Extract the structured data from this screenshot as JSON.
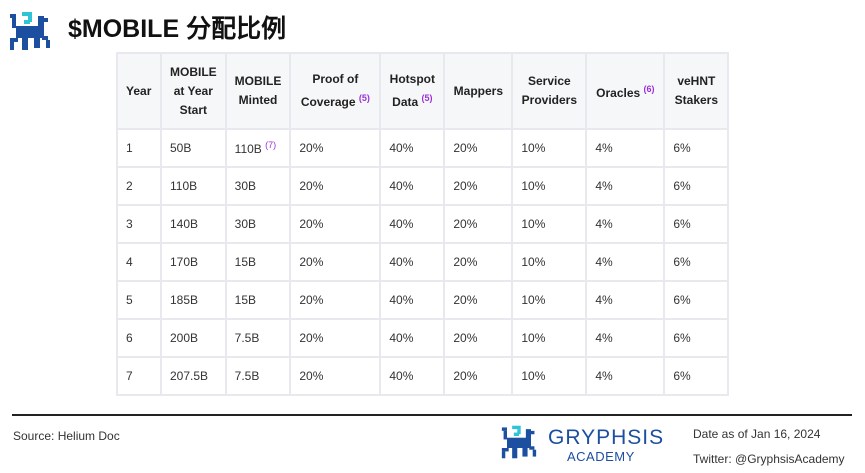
{
  "title": "$MOBILE 分配比例",
  "table": {
    "headers": [
      {
        "label": "Year",
        "note": ""
      },
      {
        "label": "MOBILE at Year Start",
        "note": ""
      },
      {
        "label": "MOBILE Minted",
        "note": ""
      },
      {
        "label": "Proof of Coverage",
        "note": "(5)"
      },
      {
        "label": "Hotspot Data",
        "note": "(5)"
      },
      {
        "label": "Mappers",
        "note": ""
      },
      {
        "label": "Service Providers",
        "note": ""
      },
      {
        "label": "Oracles",
        "note": "(6)"
      },
      {
        "label": "veHNT Stakers",
        "note": ""
      }
    ],
    "rows": [
      [
        "1",
        "50B",
        "110B",
        "20%",
        "40%",
        "20%",
        "10%",
        "4%",
        "6%"
      ],
      [
        "2",
        "110B",
        "30B",
        "20%",
        "40%",
        "20%",
        "10%",
        "4%",
        "6%"
      ],
      [
        "3",
        "140B",
        "30B",
        "20%",
        "40%",
        "20%",
        "10%",
        "4%",
        "6%"
      ],
      [
        "4",
        "170B",
        "15B",
        "20%",
        "40%",
        "20%",
        "10%",
        "4%",
        "6%"
      ],
      [
        "5",
        "185B",
        "15B",
        "20%",
        "40%",
        "20%",
        "10%",
        "4%",
        "6%"
      ],
      [
        "6",
        "200B",
        "7.5B",
        "20%",
        "40%",
        "20%",
        "10%",
        "4%",
        "6%"
      ],
      [
        "7",
        "207.5B",
        "7.5B",
        "20%",
        "40%",
        "20%",
        "10%",
        "4%",
        "6%"
      ]
    ],
    "row1_minted_note": "(7)"
  },
  "footer": {
    "source": "Source: Helium Doc",
    "brand": "GRYPHSIS",
    "academy": "ACADEMY",
    "date": "Date as of Jan 16, 2024",
    "twitter": "Twitter: @GryphsisAcademy"
  },
  "colors": {
    "brand": "#1d4fa0",
    "accent": "#2ec4d6",
    "note": "#9b30d9"
  }
}
